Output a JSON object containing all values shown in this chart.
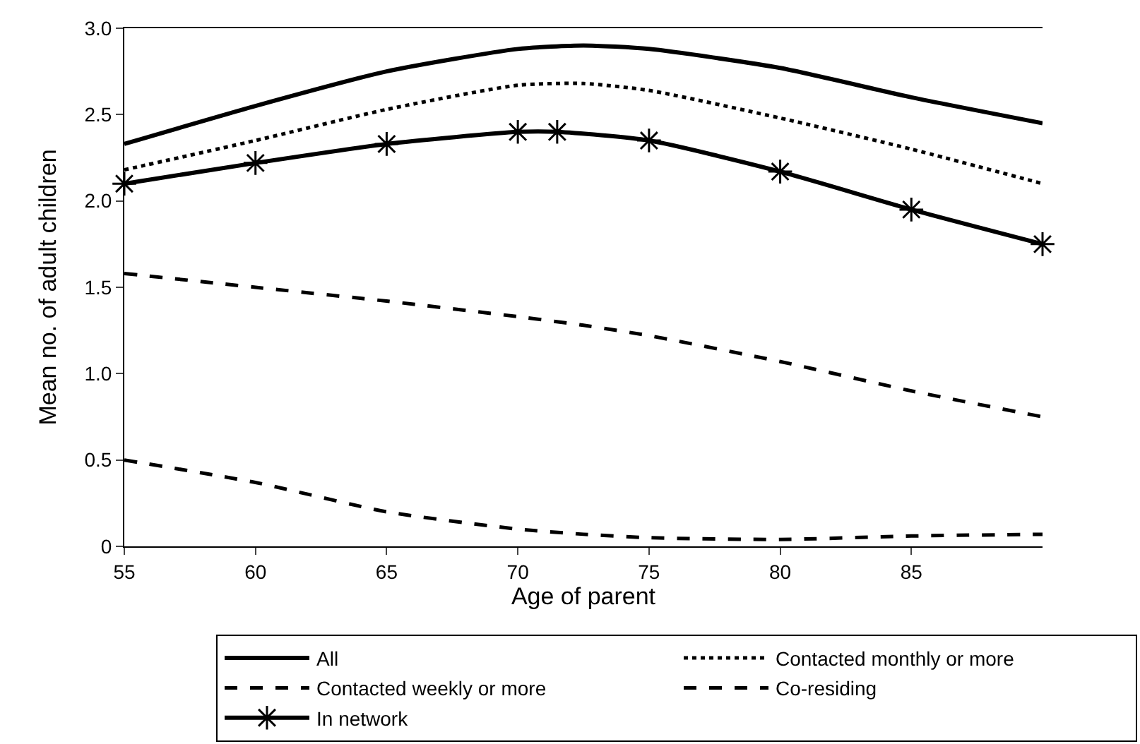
{
  "chart_data": {
    "type": "line",
    "xlabel": "Age of parent",
    "ylabel": "Mean no. of adult children",
    "x": [
      55,
      60,
      65,
      70,
      72.5,
      75,
      80,
      85,
      90
    ],
    "series": [
      {
        "name": "All",
        "color": "#000000",
        "line_style": "solid",
        "marker": "none",
        "values": [
          2.33,
          2.55,
          2.75,
          2.88,
          2.9,
          2.88,
          2.77,
          2.6,
          2.45
        ]
      },
      {
        "name": "Contacted monthly or more",
        "color": "#000000",
        "line_style": "dotted",
        "marker": "none",
        "values": [
          2.18,
          2.35,
          2.53,
          2.67,
          2.68,
          2.64,
          2.48,
          2.3,
          2.1
        ]
      },
      {
        "name": "Contacted weekly or more",
        "color": "#000000",
        "line_style": "dashed",
        "marker": "none",
        "values": [
          1.58,
          1.5,
          1.42,
          1.33,
          1.28,
          1.22,
          1.07,
          0.9,
          0.75
        ]
      },
      {
        "name": "Co-residing",
        "color": "#000000",
        "line_style": "dashed",
        "marker": "none",
        "values": [
          0.5,
          0.37,
          0.2,
          0.1,
          0.07,
          0.05,
          0.04,
          0.06,
          0.07
        ]
      },
      {
        "name": "In network",
        "color": "#000000",
        "line_style": "solid",
        "marker": "cross",
        "x": [
          55,
          60,
          65,
          70,
          71.5,
          75,
          80,
          85,
          90
        ],
        "values": [
          2.1,
          2.22,
          2.33,
          2.4,
          2.4,
          2.35,
          2.17,
          1.95,
          1.75
        ]
      }
    ],
    "xlim": [
      55,
      90
    ],
    "xticks": [
      55,
      60,
      65,
      70,
      75,
      80,
      85
    ],
    "ylim": [
      0,
      3
    ],
    "yticks": [
      0,
      {
        "value": 0.5,
        "label": "0.5"
      },
      {
        "value": 1,
        "label": "1.0"
      },
      {
        "value": 1.5,
        "label": "1.5"
      },
      {
        "value": 2,
        "label": "2.0"
      },
      {
        "value": 2.5,
        "label": "2.5"
      },
      {
        "value": 3,
        "label": "3.0"
      }
    ],
    "legend": "bottom"
  }
}
